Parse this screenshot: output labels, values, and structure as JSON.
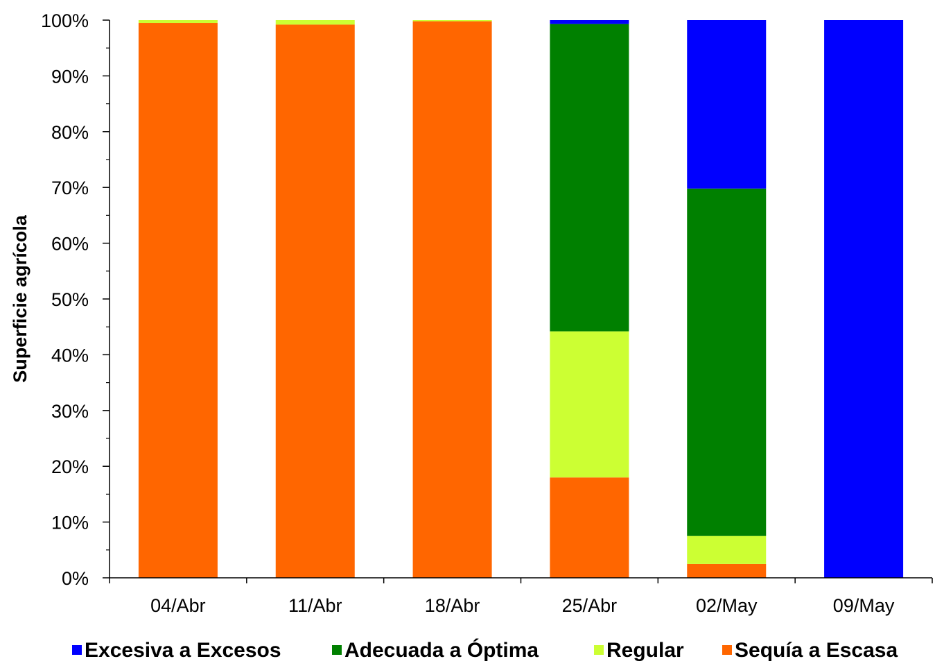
{
  "chart_data": {
    "type": "bar",
    "stacked": true,
    "normalized": true,
    "categories": [
      "04/Abr",
      "11/Abr",
      "18/Abr",
      "25/Abr",
      "02/May",
      "09/May"
    ],
    "ylabel": "Superficie agrícola",
    "ylim": [
      0,
      100
    ],
    "yticks": [
      "0%",
      "10%",
      "20%",
      "30%",
      "40%",
      "50%",
      "60%",
      "70%",
      "80%",
      "90%",
      "100%"
    ],
    "grid": false,
    "legend_position": "bottom",
    "series": [
      {
        "name": "Sequía a Escasa",
        "color": "#FF6600",
        "values": [
          99.5,
          99.2,
          99.8,
          18,
          2.5,
          0
        ]
      },
      {
        "name": "Regular",
        "color": "#CCFF33",
        "values": [
          0.5,
          0.8,
          0.2,
          26.2,
          5,
          0
        ]
      },
      {
        "name": "Adecuada a Óptima",
        "color": "#008000",
        "values": [
          0,
          0,
          0,
          55.1,
          62.3,
          0
        ]
      },
      {
        "name": "Excesiva a Excesos",
        "color": "#0000FF",
        "values": [
          0,
          0,
          0,
          0.7,
          30.2,
          100
        ]
      }
    ],
    "legend_order": [
      "Excesiva a Excesos",
      "Adecuada a Óptima",
      "Regular",
      "Sequía a Escasa"
    ]
  }
}
